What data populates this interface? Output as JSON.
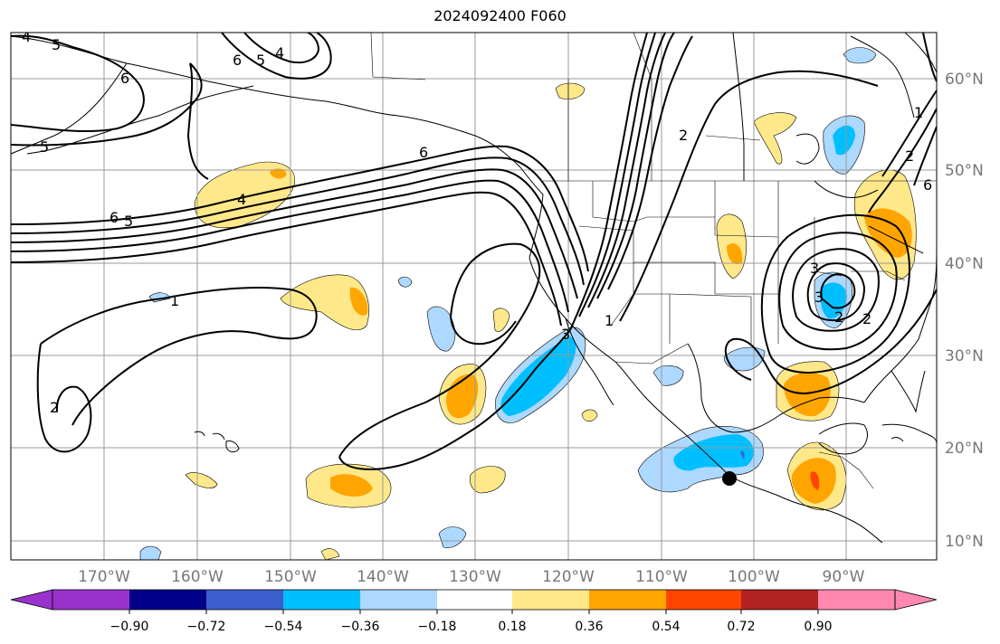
{
  "title": "2024092400 F060",
  "map": {
    "lon_labels": [
      "170°W",
      "160°W",
      "150°W",
      "140°W",
      "130°W",
      "120°W",
      "110°W",
      "100°W",
      "90°W"
    ],
    "lat_labels": [
      "60°N",
      "50°N",
      "40°N",
      "30°N",
      "20°N",
      "10°N"
    ],
    "contour_labels": [
      "4",
      "5",
      "6",
      "5",
      "4",
      "6",
      "5",
      "6",
      "5",
      "4",
      "6",
      "2",
      "1",
      "2",
      "1",
      "3",
      "2",
      "1",
      "2",
      "3",
      "2",
      "6",
      "3"
    ],
    "marker": "storm-center-dot"
  },
  "colorbar": {
    "tick_labels": [
      "−0.90",
      "−0.72",
      "−0.54",
      "−0.36",
      "−0.18",
      "0.18",
      "0.36",
      "0.54",
      "0.72",
      "0.90"
    ],
    "colors": [
      "#9932cc",
      "#00008b",
      "#3a5fcd",
      "#00bfff",
      "#add8ff",
      "#ffffff",
      "#ffe88a",
      "#ffa500",
      "#ff4500",
      "#b22222",
      "#ff88b0"
    ]
  }
}
